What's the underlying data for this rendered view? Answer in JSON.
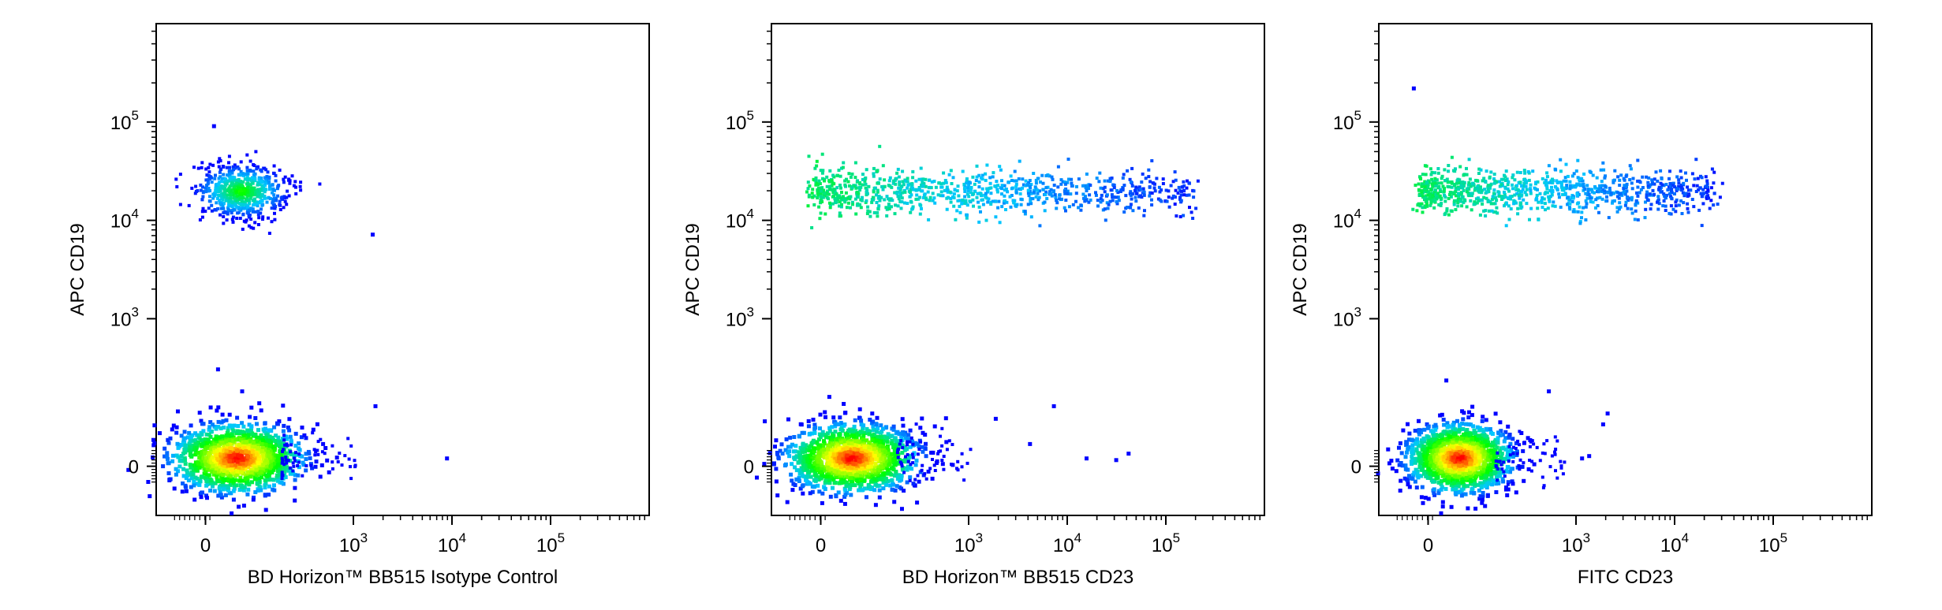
{
  "chart_data": [
    {
      "type": "scatter",
      "subtype": "flow-cytometry-density-dot-plot",
      "xlabel": "BD Horizon™ BB515 Isotype Control",
      "ylabel": "APC CD19",
      "x_scale": "biexponential",
      "y_scale": "biexponential",
      "x_ticks": [
        {
          "base": "0",
          "exp": ""
        },
        {
          "base": "10",
          "exp": "3"
        },
        {
          "base": "10",
          "exp": "4"
        },
        {
          "base": "10",
          "exp": "5"
        }
      ],
      "y_ticks": [
        {
          "base": "0",
          "exp": ""
        },
        {
          "base": "10",
          "exp": "3"
        },
        {
          "base": "10",
          "exp": "4"
        },
        {
          "base": "10",
          "exp": "5"
        }
      ],
      "color_scale": [
        "#0000ff",
        "#00c8ff",
        "#00ff00",
        "#ffff00",
        "#ff0000"
      ],
      "grid": false,
      "populations": [
        {
          "x_center": 150,
          "y_center": 0,
          "density": "high"
        },
        {
          "x_center": 100,
          "y_center": 7000,
          "density": "medium"
        }
      ],
      "outliers": [
        [
          80,
          95000
        ],
        [
          130,
          550
        ],
        [
          250,
          420
        ],
        [
          1600,
          350
        ],
        [
          8500,
          120
        ],
        [
          1500,
          7500
        ]
      ]
    },
    {
      "type": "scatter",
      "subtype": "flow-cytometry-density-dot-plot",
      "xlabel": "BD Horizon™ BB515 CD23",
      "ylabel": "APC CD19",
      "x_scale": "biexponential",
      "y_scale": "biexponential",
      "x_ticks": [
        {
          "base": "0",
          "exp": ""
        },
        {
          "base": "10",
          "exp": "3"
        },
        {
          "base": "10",
          "exp": "4"
        },
        {
          "base": "10",
          "exp": "5"
        }
      ],
      "y_ticks": [
        {
          "base": "0",
          "exp": ""
        },
        {
          "base": "10",
          "exp": "3"
        },
        {
          "base": "10",
          "exp": "4"
        },
        {
          "base": "10",
          "exp": "5"
        }
      ],
      "color_scale": [
        "#0000ff",
        "#00c8ff",
        "#00ff00",
        "#ffff00",
        "#ff0000"
      ],
      "grid": false,
      "populations": [
        {
          "x_center": 150,
          "y_center": 0,
          "density": "high"
        },
        {
          "x_range": [
            0,
            80000
          ],
          "y_center": 6500,
          "density": "low"
        }
      ],
      "outliers": [
        [
          300,
          320
        ],
        [
          1800,
          300
        ],
        [
          4000,
          220
        ],
        [
          7000,
          350
        ],
        [
          15000,
          120
        ],
        [
          30000,
          100
        ],
        [
          40000,
          180
        ]
      ]
    },
    {
      "type": "scatter",
      "subtype": "flow-cytometry-density-dot-plot",
      "xlabel": "FITC CD23",
      "ylabel": "APC CD19",
      "x_scale": "biexponential",
      "y_scale": "biexponential",
      "x_ticks": [
        {
          "base": "0",
          "exp": ""
        },
        {
          "base": "10",
          "exp": "3"
        },
        {
          "base": "10",
          "exp": "4"
        },
        {
          "base": "10",
          "exp": "5"
        }
      ],
      "y_ticks": [
        {
          "base": "0",
          "exp": ""
        },
        {
          "base": "10",
          "exp": "3"
        },
        {
          "base": "10",
          "exp": "4"
        },
        {
          "base": "10",
          "exp": "5"
        }
      ],
      "color_scale": [
        "#0000ff",
        "#00c8ff",
        "#00ff00",
        "#ffff00",
        "#ff0000"
      ],
      "grid": false,
      "populations": [
        {
          "x_center": 150,
          "y_center": 0,
          "density": "high"
        },
        {
          "x_range": [
            0,
            10000
          ],
          "y_center": 6500,
          "density": "low"
        }
      ],
      "outliers": [
        [
          -200,
          230000
        ],
        [
          200,
          480
        ],
        [
          700,
          420
        ],
        [
          2000,
          320
        ],
        [
          1800,
          280
        ],
        [
          1300,
          150
        ],
        [
          1100,
          120
        ]
      ]
    }
  ]
}
